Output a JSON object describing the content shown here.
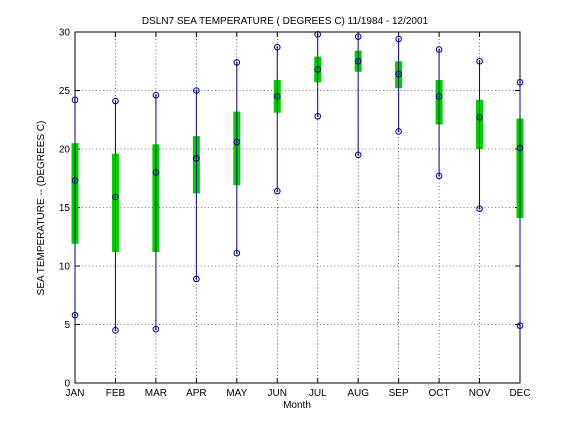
{
  "chart_data": {
    "type": "box",
    "title": "DSLN7  SEA TEMPERATURE ( DEGREES C) 11/1984 - 12/2001",
    "xlabel": "Month",
    "ylabel": "SEA TEMPERATURE -- (DEGREES C)",
    "ylim": [
      0,
      30
    ],
    "yticks": [
      0,
      5,
      10,
      15,
      20,
      25,
      30
    ],
    "grid": true,
    "categories": [
      "JAN",
      "FEB",
      "MAR",
      "APR",
      "MAY",
      "JUN",
      "JUL",
      "AUG",
      "SEP",
      "OCT",
      "NOV",
      "DEC"
    ],
    "min": [
      5.8,
      4.5,
      4.6,
      8.9,
      11.1,
      16.4,
      22.8,
      19.5,
      21.5,
      17.7,
      14.9,
      4.9
    ],
    "q1": [
      11.9,
      11.2,
      11.2,
      16.2,
      16.9,
      23.1,
      25.7,
      26.6,
      25.2,
      22.1,
      20.0,
      14.1
    ],
    "median": [
      17.3,
      15.9,
      18.0,
      19.2,
      20.6,
      24.5,
      26.8,
      27.5,
      26.4,
      24.5,
      22.7,
      20.1
    ],
    "q3": [
      20.5,
      19.6,
      20.4,
      21.1,
      23.2,
      25.9,
      27.9,
      28.4,
      27.5,
      25.9,
      24.2,
      22.6
    ],
    "max": [
      24.2,
      24.1,
      24.6,
      25.0,
      27.4,
      28.7,
      29.8,
      29.6,
      29.4,
      28.5,
      27.5,
      25.7
    ],
    "colors": {
      "whisker": "#00008b",
      "box": "#00cc00",
      "marker": "#00008b",
      "grid": "#000000"
    }
  }
}
